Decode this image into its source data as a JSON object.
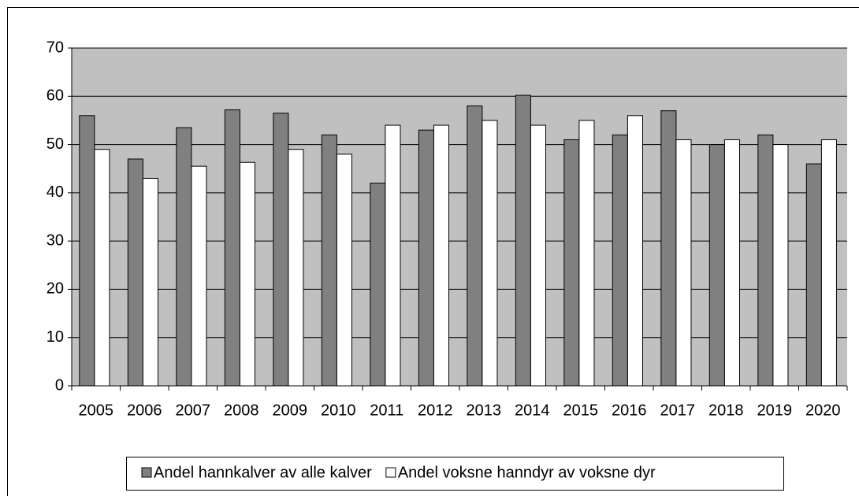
{
  "chart_data": {
    "type": "bar",
    "categories": [
      "2005",
      "2006",
      "2007",
      "2008",
      "2009",
      "2010",
      "2011",
      "2012",
      "2013",
      "2014",
      "2015",
      "2016",
      "2017",
      "2018",
      "2019",
      "2020"
    ],
    "series": [
      {
        "name": "Andel hannkalver av alle kalver",
        "color": "#808080",
        "values": [
          56,
          47,
          53.5,
          57.2,
          56.5,
          52,
          42,
          53,
          58,
          60.2,
          51,
          52,
          57,
          50,
          52,
          46
        ]
      },
      {
        "name": "Andel voksne hanndyr av voksne dyr",
        "color": "#ffffff",
        "values": [
          49,
          43,
          45.5,
          46.3,
          49,
          48,
          54,
          54,
          55,
          54,
          55,
          56,
          51,
          51,
          50,
          51
        ]
      }
    ],
    "ylim": [
      0,
      70
    ],
    "yticks": [
      0,
      10,
      20,
      30,
      40,
      50,
      60,
      70
    ],
    "grid": true,
    "plot_background": "#c0c0c0",
    "legend": "bottom"
  }
}
